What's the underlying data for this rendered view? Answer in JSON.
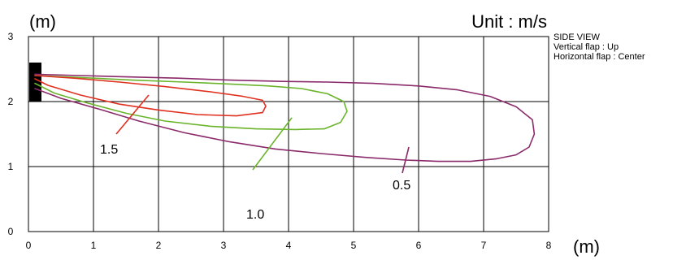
{
  "chart_data": {
    "type": "line",
    "y_unit": "(m)",
    "x_unit": "(m)",
    "unit_label": "Unit : m/s",
    "xlim": [
      0,
      8
    ],
    "ylim": [
      0,
      3
    ],
    "x_ticks": [
      "0",
      "1",
      "2",
      "3",
      "4",
      "5",
      "6",
      "7",
      "8"
    ],
    "y_ticks": [
      "0",
      "1",
      "2",
      "3"
    ],
    "grid": true,
    "notes": [
      "SIDE VIEW",
      "Vertical flap : Up",
      "Horizontal flap : Center"
    ],
    "outlet": {
      "x": [
        0,
        0.2
      ],
      "y": [
        2.0,
        2.6
      ],
      "color": "#000000"
    },
    "series": [
      {
        "name": "0.5",
        "color": "#8b2a6b",
        "label_pos": [
          5.6,
          0.65
        ],
        "leader": [
          [
            5.75,
            0.9
          ],
          [
            5.85,
            1.3
          ]
        ],
        "x": [
          0.1,
          0.8,
          1.5,
          2.3,
          3.1,
          3.9,
          4.6,
          5.3,
          6.0,
          6.6,
          7.1,
          7.5,
          7.75,
          7.78,
          7.7,
          7.5,
          7.2,
          6.8,
          6.3,
          5.8,
          5.2,
          4.5,
          3.8,
          3.1,
          2.4,
          1.7,
          1.1,
          0.5,
          0.1
        ],
        "y": [
          2.42,
          2.4,
          2.38,
          2.36,
          2.33,
          2.31,
          2.3,
          2.28,
          2.24,
          2.18,
          2.08,
          1.92,
          1.72,
          1.5,
          1.3,
          1.18,
          1.12,
          1.08,
          1.08,
          1.1,
          1.14,
          1.2,
          1.27,
          1.38,
          1.52,
          1.7,
          1.88,
          2.05,
          2.2
        ]
      },
      {
        "name": "1.0",
        "color": "#6ab42c",
        "label_pos": [
          3.35,
          0.2
        ],
        "leader": [
          [
            3.45,
            0.95
          ],
          [
            4.05,
            1.75
          ]
        ],
        "x": [
          0.1,
          0.8,
          1.6,
          2.4,
          3.1,
          3.7,
          4.2,
          4.6,
          4.85,
          4.9,
          4.8,
          4.55,
          4.1,
          3.5,
          2.8,
          2.1,
          1.5,
          0.9,
          0.4,
          0.1
        ],
        "y": [
          2.4,
          2.37,
          2.33,
          2.3,
          2.27,
          2.24,
          2.2,
          2.12,
          2.0,
          1.85,
          1.68,
          1.58,
          1.57,
          1.58,
          1.62,
          1.7,
          1.82,
          1.98,
          2.13,
          2.28
        ]
      },
      {
        "name": "1.5",
        "color": "#e03020",
        "label_pos": [
          1.1,
          1.2
        ],
        "leader": [
          [
            1.35,
            1.5
          ],
          [
            1.85,
            2.1
          ]
        ],
        "x": [
          0.1,
          0.7,
          1.4,
          2.1,
          2.8,
          3.3,
          3.6,
          3.65,
          3.6,
          3.2,
          2.6,
          2.0,
          1.4,
          0.8,
          0.3,
          0.1
        ],
        "y": [
          2.4,
          2.36,
          2.3,
          2.23,
          2.15,
          2.08,
          2.02,
          1.93,
          1.83,
          1.78,
          1.8,
          1.87,
          1.96,
          2.1,
          2.25,
          2.35
        ]
      }
    ]
  }
}
